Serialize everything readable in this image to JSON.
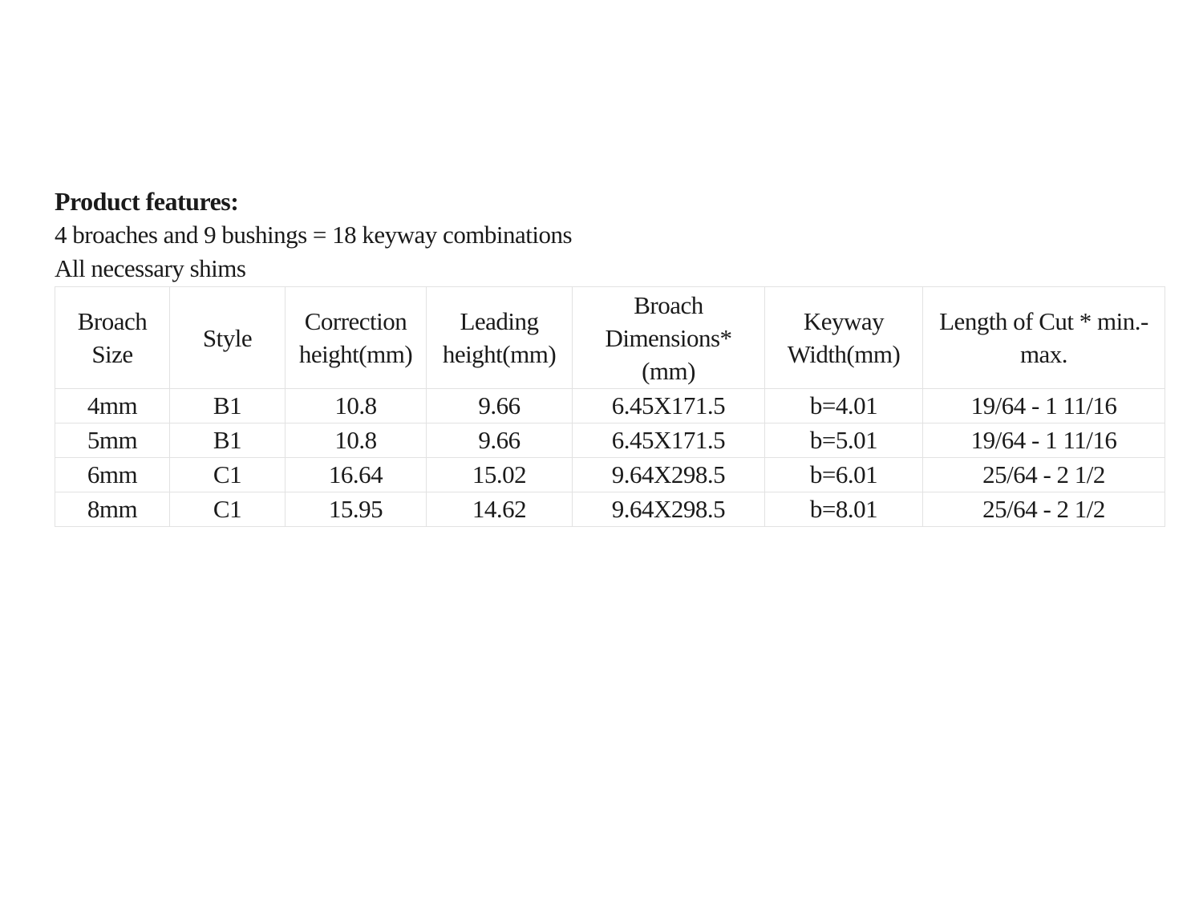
{
  "header": {
    "title": "Product features:",
    "lines": [
      "4 broaches and 9 bushings = 18 keyway combinations",
      "All necessary shims"
    ]
  },
  "table": {
    "columns": [
      [
        "Broach",
        "Size"
      ],
      [
        "Style"
      ],
      [
        "Correction",
        "height(mm)"
      ],
      [
        "Leading",
        "height(mm)"
      ],
      [
        "Broach",
        "Dimensions*",
        "(mm)"
      ],
      [
        "Keyway",
        "Width(mm)"
      ],
      [
        "Length of Cut * min.-",
        "max."
      ]
    ],
    "rows": [
      [
        "4mm",
        "B1",
        "10.8",
        "9.66",
        "6.45X171.5",
        "b=4.01",
        "19/64 - 1 11/16"
      ],
      [
        "5mm",
        "B1",
        "10.8",
        "9.66",
        "6.45X171.5",
        "b=5.01",
        "19/64 - 1 11/16"
      ],
      [
        "6mm",
        "C1",
        "16.64",
        "15.02",
        "9.64X298.5",
        "b=6.01",
        "25/64 - 2 1/2"
      ],
      [
        "8mm",
        "C1",
        "15.95",
        "14.62",
        "9.64X298.5",
        "b=8.01",
        "25/64 - 2 1/2"
      ]
    ]
  }
}
